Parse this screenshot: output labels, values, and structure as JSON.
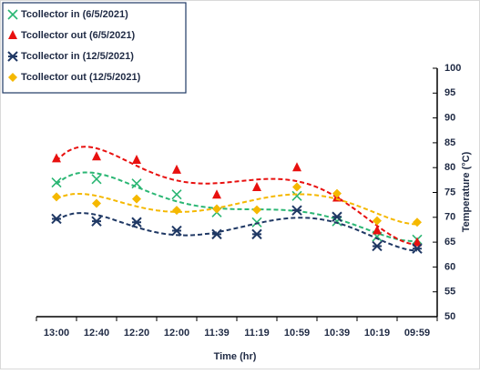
{
  "chart_data": {
    "type": "line",
    "x_label": "Time (hr)",
    "y_label": "Temperature (°C)",
    "categories": [
      "13:00",
      "12:40",
      "12:20",
      "12:00",
      "11:39",
      "11:19",
      "10:59",
      "10:39",
      "10:19",
      "09:59"
    ],
    "ylim": [
      50,
      100
    ],
    "yticks": [
      50,
      55,
      60,
      65,
      70,
      75,
      80,
      85,
      90,
      95,
      100
    ],
    "y_axis_side": "right",
    "series": [
      {
        "name": "Tcollector in (6/5/2021)",
        "color": "#2ab673",
        "marker": "x",
        "values": [
          77.0,
          77.7,
          76.8,
          74.6,
          71.0,
          69.0,
          74.3,
          69.2,
          66.1,
          65.5
        ]
      },
      {
        "name": "Tcollector out (6/5/2021)",
        "color": "#e8100f",
        "marker": "triangle",
        "values": [
          81.8,
          82.2,
          81.5,
          79.5,
          74.5,
          76.0,
          80.0,
          73.9,
          67.3,
          64.9
        ]
      },
      {
        "name": "Tcollector in (12/5/2021)",
        "color": "#1f3864",
        "marker": "asterisk",
        "values": [
          69.7,
          69.2,
          69.0,
          67.3,
          66.6,
          66.6,
          71.4,
          70.1,
          64.2,
          63.7
        ]
      },
      {
        "name": "Tcollector out (12/5/2021)",
        "color": "#f5b800",
        "marker": "diamond",
        "values": [
          74.1,
          72.8,
          73.7,
          71.4,
          71.7,
          71.5,
          76.1,
          74.8,
          69.3,
          69.0
        ]
      }
    ]
  }
}
